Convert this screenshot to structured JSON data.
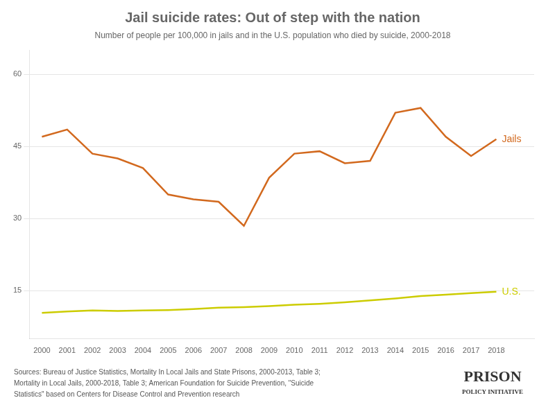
{
  "chart_data": {
    "type": "line",
    "title": "Jail suicide rates: Out of step with the nation",
    "subtitle": "Number of people per 100,000 in jails and in the U.S. population who died by suicide, 2000-2018",
    "x": [
      2000,
      2001,
      2002,
      2003,
      2004,
      2005,
      2006,
      2007,
      2008,
      2009,
      2010,
      2011,
      2012,
      2013,
      2014,
      2015,
      2016,
      2017,
      2018
    ],
    "series": [
      {
        "name": "Jails",
        "color": "#D2691E",
        "values": [
          47.0,
          48.5,
          43.5,
          42.5,
          40.5,
          35.0,
          34.0,
          33.5,
          28.5,
          38.5,
          43.5,
          44.0,
          41.5,
          42.0,
          52.0,
          53.0,
          47.0,
          43.0,
          46.5
        ]
      },
      {
        "name": "U.S.",
        "color": "#cccc00",
        "values": [
          10.4,
          10.7,
          10.9,
          10.8,
          10.9,
          11.0,
          11.2,
          11.5,
          11.6,
          11.8,
          12.1,
          12.3,
          12.6,
          13.0,
          13.4,
          13.9,
          14.2,
          14.5,
          14.8
        ]
      }
    ],
    "xlim": [
      1999.5,
      2019.5
    ],
    "xticks": [
      2000,
      2001,
      2002,
      2003,
      2004,
      2005,
      2006,
      2007,
      2008,
      2009,
      2010,
      2011,
      2012,
      2013,
      2014,
      2015,
      2016,
      2017,
      2018
    ],
    "ylim": [
      5,
      65
    ],
    "yticks": [
      15,
      30,
      45,
      60
    ],
    "grid": "y",
    "annotations": [
      "Sources: Bureau of Justice Statistics, Mortality In Local Jails and State Prisons, 2000-2013, Table 3;",
      "Mortality in Local Jails, 2000-2018, Table 3; American Foundation for Suicide Prevention, \"Suicide",
      "Statistics\" based on Centers for Disease Control and Prevention research",
      "PRISON",
      "POLICY INITIATIVE"
    ]
  }
}
